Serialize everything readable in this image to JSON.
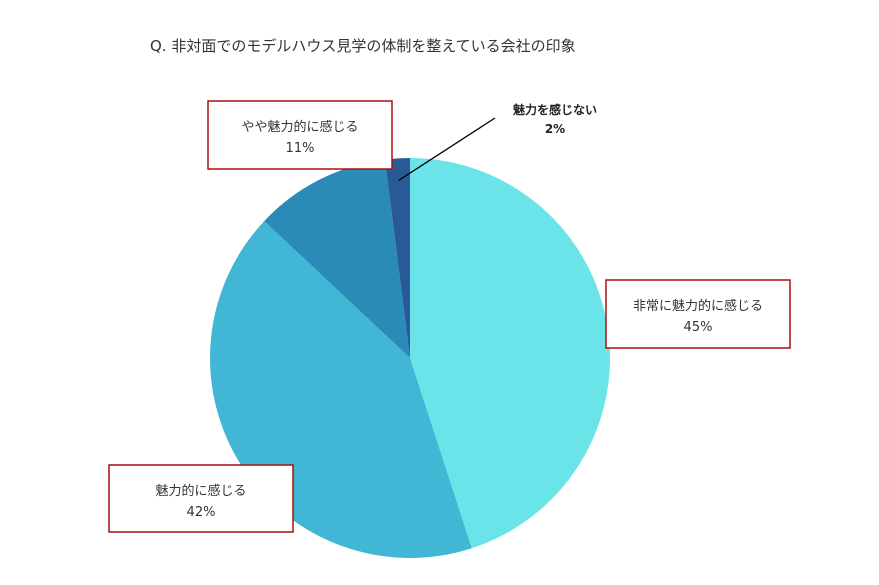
{
  "chart_data": {
    "type": "pie",
    "title": "Q. 非対面でのモデルハウス見学の体制を整えている会社の印象",
    "slices": [
      {
        "label": "非常に魅力的に感じる",
        "value": 45,
        "value_label": "45%",
        "color": "#6ae4e8"
      },
      {
        "label": "魅力的に感じる",
        "value": 42,
        "value_label": "42%",
        "color": "#41b6d5"
      },
      {
        "label": "やや魅力的に感じる",
        "value": 11,
        "value_label": "11%",
        "color": "#2a8ab8"
      },
      {
        "label": "魅力を感じない",
        "value": 2,
        "value_label": "2%",
        "color": "#2a5a95"
      }
    ],
    "label_box_color": "#aa1111",
    "start_angle": "12 o'clock",
    "direction": "clockwise"
  }
}
